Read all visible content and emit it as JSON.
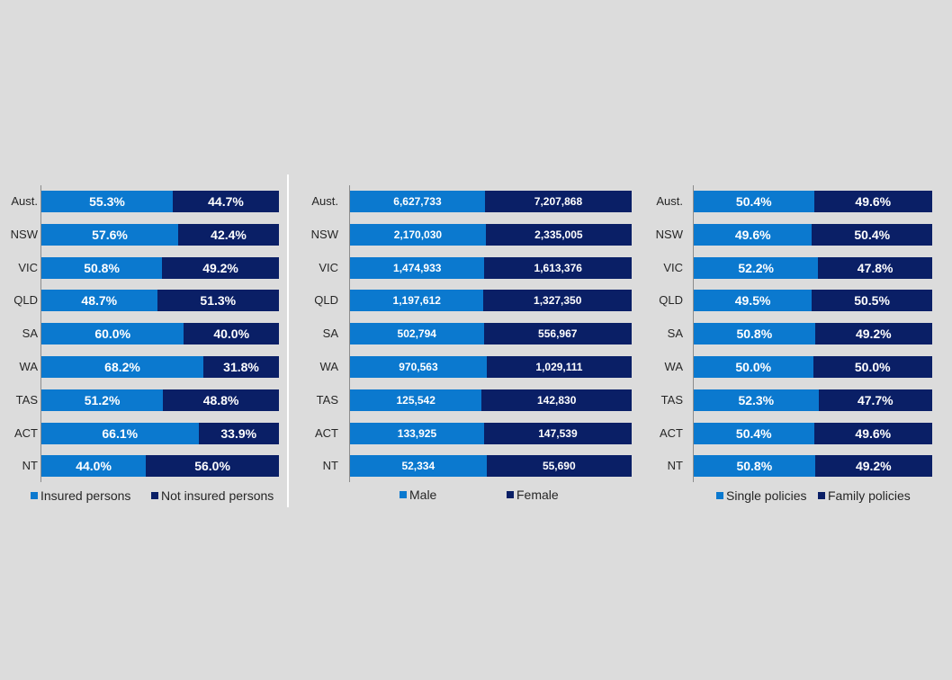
{
  "colors": {
    "series1": "#0b79cf",
    "series2": "#0a1f66"
  },
  "chart_data": [
    {
      "type": "bar",
      "stacked": "percent",
      "orientation": "horizontal",
      "categories": [
        "Aust.",
        "NSW",
        "VIC",
        "QLD",
        "SA",
        "WA",
        "TAS",
        "ACT",
        "NT"
      ],
      "series": [
        {
          "name": "Insured persons",
          "values": [
            55.3,
            57.6,
            50.8,
            48.7,
            60.0,
            68.2,
            51.2,
            66.1,
            44.0
          ],
          "labels": [
            "55.3%",
            "57.6%",
            "50.8%",
            "48.7%",
            "60.0%",
            "68.2%",
            "51.2%",
            "66.1%",
            "44.0%"
          ]
        },
        {
          "name": "Not insured persons",
          "values": [
            44.7,
            42.4,
            49.2,
            51.3,
            40.0,
            31.8,
            48.8,
            33.9,
            56.0
          ],
          "labels": [
            "44.7%",
            "42.4%",
            "49.2%",
            "51.3%",
            "40.0%",
            "31.8%",
            "48.8%",
            "33.9%",
            "56.0%"
          ]
        }
      ],
      "legend_position": "bottom"
    },
    {
      "type": "bar",
      "stacked": "percent",
      "orientation": "horizontal",
      "categories": [
        "Aust.",
        "NSW",
        "VIC",
        "QLD",
        "SA",
        "WA",
        "TAS",
        "ACT",
        "NT"
      ],
      "series": [
        {
          "name": "Male",
          "values": [
            6627733,
            2170030,
            1474933,
            1197612,
            502794,
            970563,
            125542,
            133925,
            52334
          ],
          "labels": [
            "6,627,733",
            "2,170,030",
            "1,474,933",
            "1,197,612",
            "502,794",
            "970,563",
            "125,542",
            "133,925",
            "52,334"
          ]
        },
        {
          "name": "Female",
          "values": [
            7207868,
            2335005,
            1613376,
            1327350,
            556967,
            1029111,
            142830,
            147539,
            55690
          ],
          "labels": [
            "7,207,868",
            "2,335,005",
            "1,613,376",
            "1,327,350",
            "556,967",
            "1,029,111",
            "142,830",
            "147,539",
            "55,690"
          ]
        }
      ],
      "legend_position": "bottom"
    },
    {
      "type": "bar",
      "stacked": "percent",
      "orientation": "horizontal",
      "categories": [
        "Aust.",
        "NSW",
        "VIC",
        "QLD",
        "SA",
        "WA",
        "TAS",
        "ACT",
        "NT"
      ],
      "series": [
        {
          "name": "Single policies",
          "values": [
            50.4,
            49.6,
            52.2,
            49.5,
            50.8,
            50.0,
            52.3,
            50.4,
            50.8
          ],
          "labels": [
            "50.4%",
            "49.6%",
            "52.2%",
            "49.5%",
            "50.8%",
            "50.0%",
            "52.3%",
            "50.4%",
            "50.8%"
          ]
        },
        {
          "name": "Family policies",
          "values": [
            49.6,
            50.4,
            47.8,
            50.5,
            49.2,
            50.0,
            47.7,
            49.6,
            49.2
          ],
          "labels": [
            "49.6%",
            "50.4%",
            "47.8%",
            "50.5%",
            "49.2%",
            "50.0%",
            "47.7%",
            "49.6%",
            "49.2%"
          ]
        }
      ],
      "legend_position": "bottom"
    }
  ]
}
